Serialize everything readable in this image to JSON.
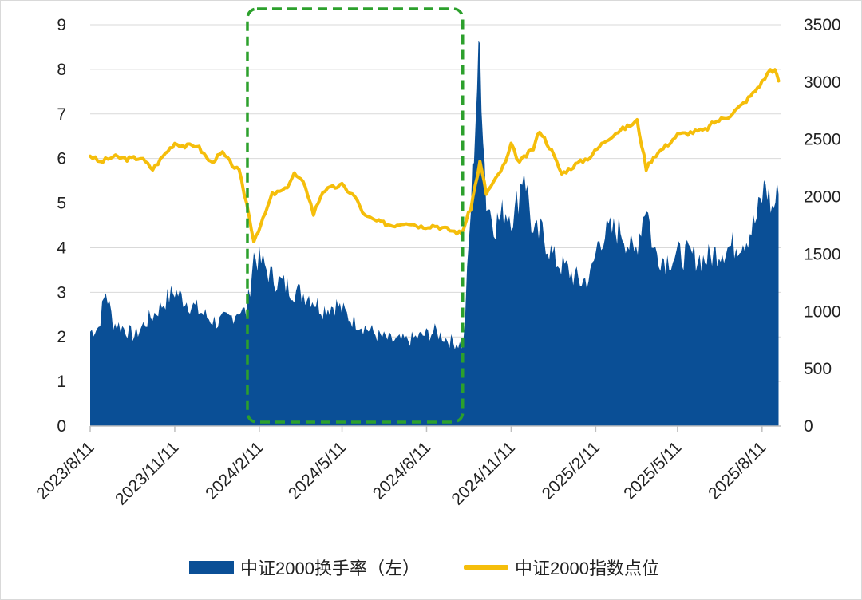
{
  "chart_data": {
    "type": "area",
    "title": "",
    "x_ticks": [
      "2023/8/11",
      "2023/11/11",
      "2024/2/11",
      "2024/5/11",
      "2024/8/11",
      "2024/11/11",
      "2025/2/11",
      "2025/5/11",
      "2025/8/11"
    ],
    "y_left": {
      "ylim": [
        0,
        9
      ],
      "ticks": [
        "0",
        "1",
        "2",
        "3",
        "4",
        "5",
        "6",
        "7",
        "8",
        "9"
      ]
    },
    "y_right": {
      "ylim": [
        0,
        3500
      ],
      "ticks": [
        "0",
        "500",
        "1000",
        "1500",
        "2000",
        "2500",
        "3000",
        "3500"
      ]
    },
    "grid": "horizontal",
    "legend_position": "bottom",
    "series": [
      {
        "name": "中证2000换手率（左）",
        "kind": "area",
        "axis": "left",
        "color": "#0a4f96",
        "points": [
          [
            "2023/8/11",
            2.1
          ],
          [
            "2023/8/20",
            2.2
          ],
          [
            "2023/8/28",
            3.0
          ],
          [
            "2023/9/5",
            2.3
          ],
          [
            "2023/9/15",
            2.2
          ],
          [
            "2023/9/28",
            2.0
          ],
          [
            "2023/10/10",
            2.3
          ],
          [
            "2023/10/20",
            2.5
          ],
          [
            "2023/11/1",
            2.8
          ],
          [
            "2023/11/11",
            3.0
          ],
          [
            "2023/11/22",
            2.8
          ],
          [
            "2023/12/5",
            2.6
          ],
          [
            "2023/12/18",
            2.4
          ],
          [
            "2023/12/28",
            2.3
          ],
          [
            "2024/1/10",
            2.4
          ],
          [
            "2024/1/20",
            2.6
          ],
          [
            "2024/1/28",
            2.5
          ],
          [
            "2024/2/5",
            3.8
          ],
          [
            "2024/2/15",
            3.6
          ],
          [
            "2024/2/25",
            3.3
          ],
          [
            "2024/3/5",
            3.2
          ],
          [
            "2024/3/20",
            3.0
          ],
          [
            "2024/4/5",
            2.9
          ],
          [
            "2024/4/20",
            2.6
          ],
          [
            "2024/5/5",
            2.7
          ],
          [
            "2024/5/20",
            2.4
          ],
          [
            "2024/6/5",
            2.2
          ],
          [
            "2024/6/20",
            2.0
          ],
          [
            "2024/7/5",
            1.9
          ],
          [
            "2024/7/20",
            1.9
          ],
          [
            "2024/8/5",
            2.0
          ],
          [
            "2024/8/20",
            2.1
          ],
          [
            "2024/9/5",
            1.9
          ],
          [
            "2024/9/20",
            1.8
          ],
          [
            "2024/9/28",
            4.8
          ],
          [
            "2024/10/5",
            7.6
          ],
          [
            "2024/10/8",
            8.4
          ],
          [
            "2024/10/15",
            5.0
          ],
          [
            "2024/10/25",
            4.5
          ],
          [
            "2024/11/5",
            4.8
          ],
          [
            "2024/11/15",
            4.7
          ],
          [
            "2024/11/25",
            5.8
          ],
          [
            "2024/12/5",
            4.2
          ],
          [
            "2024/12/15",
            4.3
          ],
          [
            "2024/12/28",
            3.7
          ],
          [
            "2025/1/10",
            3.5
          ],
          [
            "2025/1/25",
            3.2
          ],
          [
            "2025/2/5",
            3.3
          ],
          [
            "2025/2/15",
            4.2
          ],
          [
            "2025/2/25",
            4.3
          ],
          [
            "2025/3/10",
            4.4
          ],
          [
            "2025/3/25",
            3.8
          ],
          [
            "2025/4/7",
            5.0
          ],
          [
            "2025/4/15",
            3.9
          ],
          [
            "2025/4/28",
            3.7
          ],
          [
            "2025/5/10",
            3.8
          ],
          [
            "2025/5/25",
            3.8
          ],
          [
            "2025/6/10",
            3.7
          ],
          [
            "2025/6/25",
            3.9
          ],
          [
            "2025/7/10",
            4.0
          ],
          [
            "2025/7/25",
            4.2
          ],
          [
            "2025/8/5",
            4.6
          ],
          [
            "2025/8/15",
            5.4
          ],
          [
            "2025/8/22",
            4.8
          ],
          [
            "2025/8/29",
            5.2
          ]
        ]
      },
      {
        "name": "中证2000指数点位",
        "kind": "line",
        "axis": "right",
        "color": "#f5be0b",
        "points": [
          [
            "2023/8/11",
            2360
          ],
          [
            "2023/8/22",
            2300
          ],
          [
            "2023/9/5",
            2350
          ],
          [
            "2023/9/20",
            2330
          ],
          [
            "2023/10/5",
            2340
          ],
          [
            "2023/10/18",
            2240
          ],
          [
            "2023/11/1",
            2380
          ],
          [
            "2023/11/11",
            2470
          ],
          [
            "2023/11/22",
            2440
          ],
          [
            "2023/12/5",
            2450
          ],
          [
            "2023/12/20",
            2300
          ],
          [
            "2024/1/2",
            2380
          ],
          [
            "2024/1/10",
            2300
          ],
          [
            "2024/1/20",
            2220
          ],
          [
            "2024/1/28",
            1950
          ],
          [
            "2024/2/5",
            1620
          ],
          [
            "2024/2/15",
            1800
          ],
          [
            "2024/2/25",
            2020
          ],
          [
            "2024/3/10",
            2060
          ],
          [
            "2024/3/20",
            2200
          ],
          [
            "2024/4/1",
            2100
          ],
          [
            "2024/4/10",
            1850
          ],
          [
            "2024/4/20",
            2050
          ],
          [
            "2024/5/1",
            2080
          ],
          [
            "2024/5/11",
            2100
          ],
          [
            "2024/5/25",
            2000
          ],
          [
            "2024/6/5",
            1830
          ],
          [
            "2024/6/20",
            1780
          ],
          [
            "2024/7/5",
            1750
          ],
          [
            "2024/7/20",
            1780
          ],
          [
            "2024/8/5",
            1740
          ],
          [
            "2024/8/20",
            1750
          ],
          [
            "2024/9/5",
            1710
          ],
          [
            "2024/9/18",
            1680
          ],
          [
            "2024/9/28",
            1900
          ],
          [
            "2024/10/8",
            2300
          ],
          [
            "2024/10/15",
            2030
          ],
          [
            "2024/10/25",
            2150
          ],
          [
            "2024/11/5",
            2300
          ],
          [
            "2024/11/11",
            2450
          ],
          [
            "2024/11/20",
            2300
          ],
          [
            "2024/12/5",
            2420
          ],
          [
            "2024/12/12",
            2580
          ],
          [
            "2024/12/25",
            2400
          ],
          [
            "2025/1/5",
            2200
          ],
          [
            "2025/1/20",
            2280
          ],
          [
            "2025/2/5",
            2350
          ],
          [
            "2025/2/20",
            2480
          ],
          [
            "2025/3/5",
            2560
          ],
          [
            "2025/3/20",
            2620
          ],
          [
            "2025/3/28",
            2660
          ],
          [
            "2025/4/7",
            2250
          ],
          [
            "2025/4/15",
            2350
          ],
          [
            "2025/4/28",
            2440
          ],
          [
            "2025/5/11",
            2540
          ],
          [
            "2025/5/25",
            2560
          ],
          [
            "2025/6/10",
            2580
          ],
          [
            "2025/6/20",
            2650
          ],
          [
            "2025/7/5",
            2700
          ],
          [
            "2025/7/20",
            2800
          ],
          [
            "2025/8/1",
            2900
          ],
          [
            "2025/8/11",
            3000
          ],
          [
            "2025/8/20",
            3110
          ],
          [
            "2025/8/25",
            3100
          ],
          [
            "2025/8/29",
            3010
          ]
        ]
      }
    ]
  },
  "legend": {
    "area_label": "中证2000换手率（左）",
    "line_label": "中证2000指数点位"
  },
  "highlight_box": {
    "color": "#2ca02c",
    "from": "2024/2/5",
    "to": "2024/9/28"
  }
}
